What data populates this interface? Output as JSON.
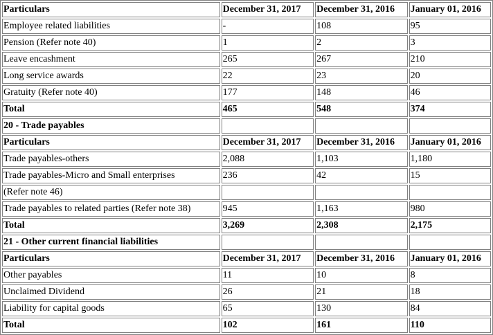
{
  "rows": [
    {
      "cells": [
        "Particulars",
        "December 31, 2017",
        "December 31, 2016",
        "January 01, 2016"
      ],
      "bold": true
    },
    {
      "cells": [
        "Employee related liabilities",
        "-",
        "108",
        "95"
      ],
      "bold": false
    },
    {
      "cells": [
        "Pension (Refer note 40)",
        "1",
        "2",
        "3"
      ],
      "bold": false
    },
    {
      "cells": [
        "Leave encashment",
        "265",
        "267",
        "210"
      ],
      "bold": false
    },
    {
      "cells": [
        "Long service awards",
        "22",
        "23",
        "20"
      ],
      "bold": false
    },
    {
      "cells": [
        "Gratuity (Refer note 40)",
        "177",
        "148",
        "46"
      ],
      "bold": false
    },
    {
      "cells": [
        "Total",
        "465",
        "548",
        "374"
      ],
      "bold": true
    },
    {
      "cells": [
        "20 - Trade payables",
        "",
        "",
        ""
      ],
      "bold": true
    },
    {
      "cells": [
        "Particulars",
        "December 31, 2017",
        "December 31, 2016",
        "January 01, 2016"
      ],
      "bold": true
    },
    {
      "cells": [
        "Trade payables-others",
        "2,088",
        "1,103",
        "1,180"
      ],
      "bold": false
    },
    {
      "cells": [
        "Trade payables-Micro and Small enterprises",
        "236",
        "42",
        "15"
      ],
      "bold": false
    },
    {
      "cells": [
        "(Refer note 46)",
        "",
        "",
        ""
      ],
      "bold": false
    },
    {
      "cells": [
        "Trade payables to related parties (Refer note 38)",
        "945",
        "1,163",
        "980"
      ],
      "bold": false
    },
    {
      "cells": [
        "Total",
        "3,269",
        "2,308",
        "2,175"
      ],
      "bold": true
    },
    {
      "cells": [
        "21 - Other current financial liabilities",
        "",
        "",
        ""
      ],
      "bold": true
    },
    {
      "cells": [
        "Particulars",
        "December 31, 2017",
        "December 31, 2016",
        "January 01, 2016"
      ],
      "bold": true
    },
    {
      "cells": [
        "Other payables",
        "11",
        "10",
        "8"
      ],
      "bold": false
    },
    {
      "cells": [
        "Unclaimed Dividend",
        "26",
        "21",
        "18"
      ],
      "bold": false
    },
    {
      "cells": [
        "Liability for capital goods",
        "65",
        "130",
        "84"
      ],
      "bold": false
    },
    {
      "cells": [
        "Total",
        "102",
        "161",
        "110"
      ],
      "bold": true
    }
  ]
}
